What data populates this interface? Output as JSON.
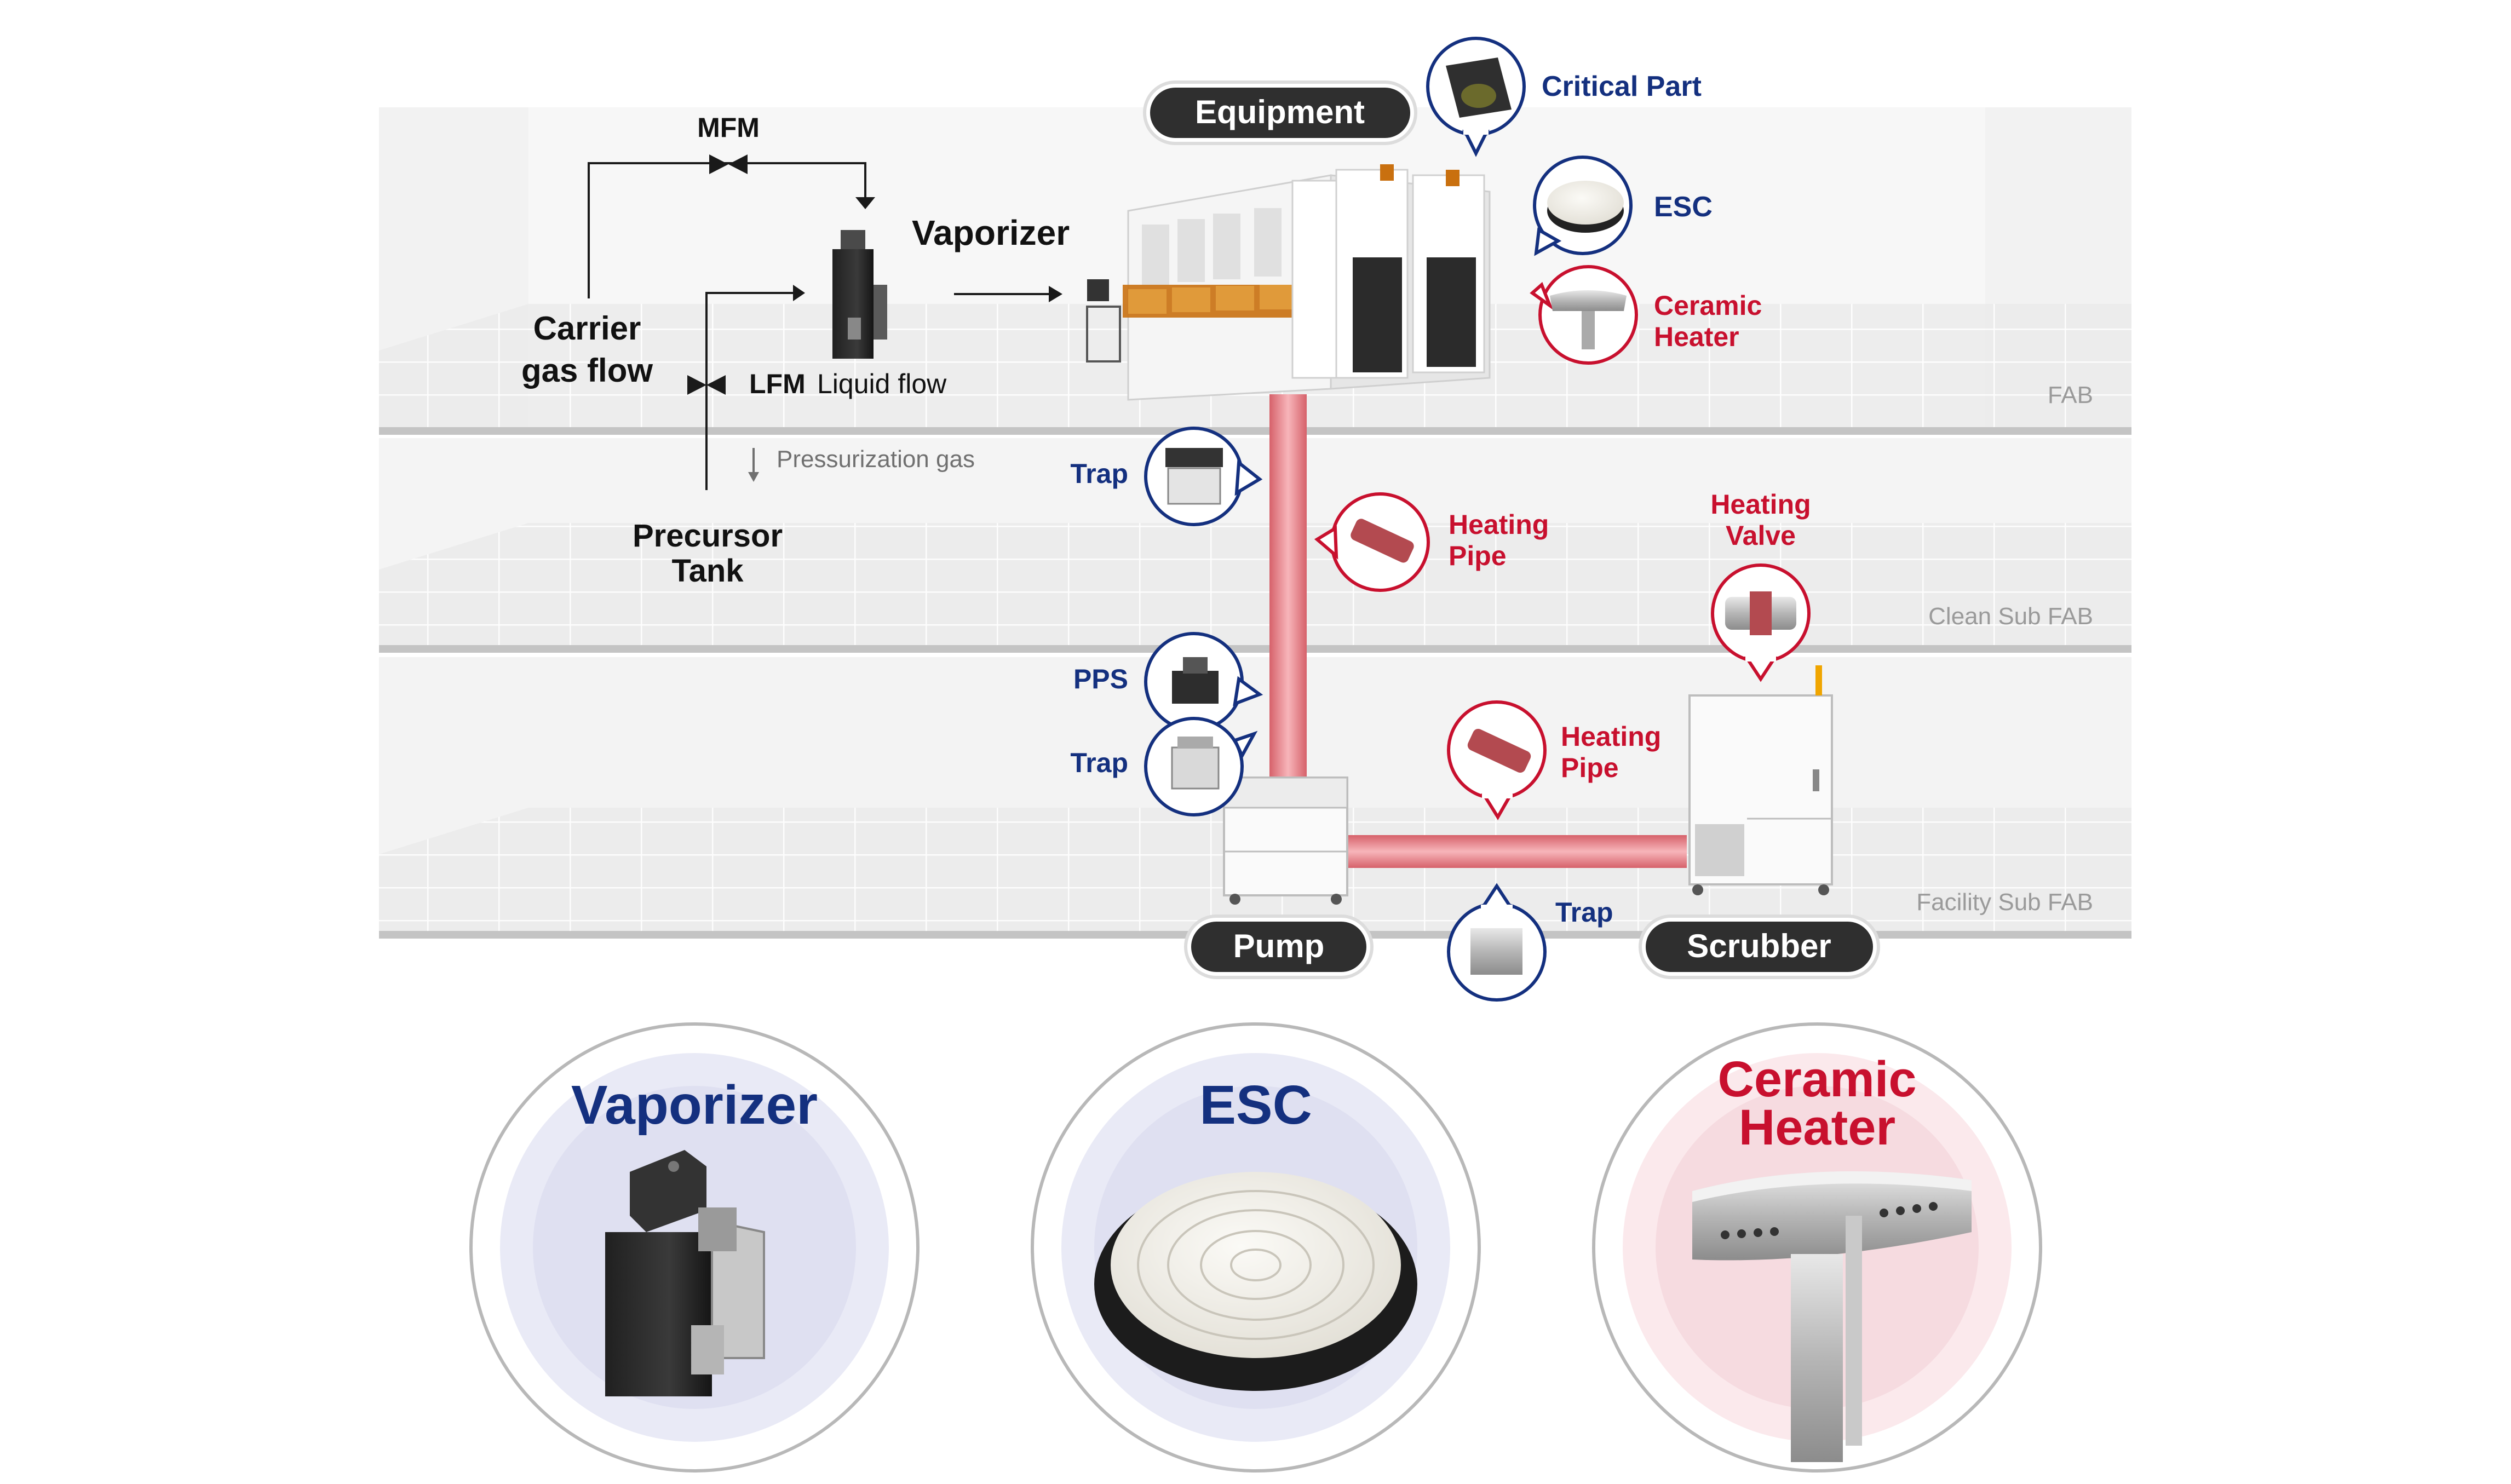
{
  "levels": {
    "fab": "FAB",
    "clean_sub_fab": "Clean Sub FAB",
    "facility_sub_fab": "Facility Sub FAB"
  },
  "process": {
    "mfm": "MFM",
    "vaporizer": "Vaporizer",
    "carrier_line1": "Carrier",
    "carrier_line2": "gas flow",
    "lfm": "LFM",
    "liquid_flow": "Liquid flow",
    "pressurization": "Pressurization gas",
    "precursor_line1": "Precursor",
    "precursor_line2": "Tank"
  },
  "badges": {
    "equipment": "Equipment",
    "pump": "Pump",
    "scrubber": "Scrubber"
  },
  "callouts": {
    "critical_part": "Critical Part",
    "esc": "ESC",
    "ceramic_heater_line1": "Ceramic",
    "ceramic_heater_line2": "Heater",
    "trap_upper": "Trap",
    "heating_pipe_upper_line1": "Heating",
    "heating_pipe_upper_line2": "Pipe",
    "heating_valve_line1": "Heating",
    "heating_valve_line2": "Valve",
    "pps": "PPS",
    "trap_mid": "Trap",
    "heating_pipe_lower_line1": "Heating",
    "heating_pipe_lower_line2": "Pipe",
    "trap_bottom": "Trap"
  },
  "products": {
    "vaporizer": "Vaporizer",
    "esc": "ESC",
    "ceramic_line1": "Ceramic",
    "ceramic_line2": "Heater"
  },
  "colors": {
    "navy": "#14307f",
    "red": "#c8102e",
    "badge": "#2f2f2f",
    "pipe": "#e98a8f",
    "level_label": "#9a9a9a"
  }
}
